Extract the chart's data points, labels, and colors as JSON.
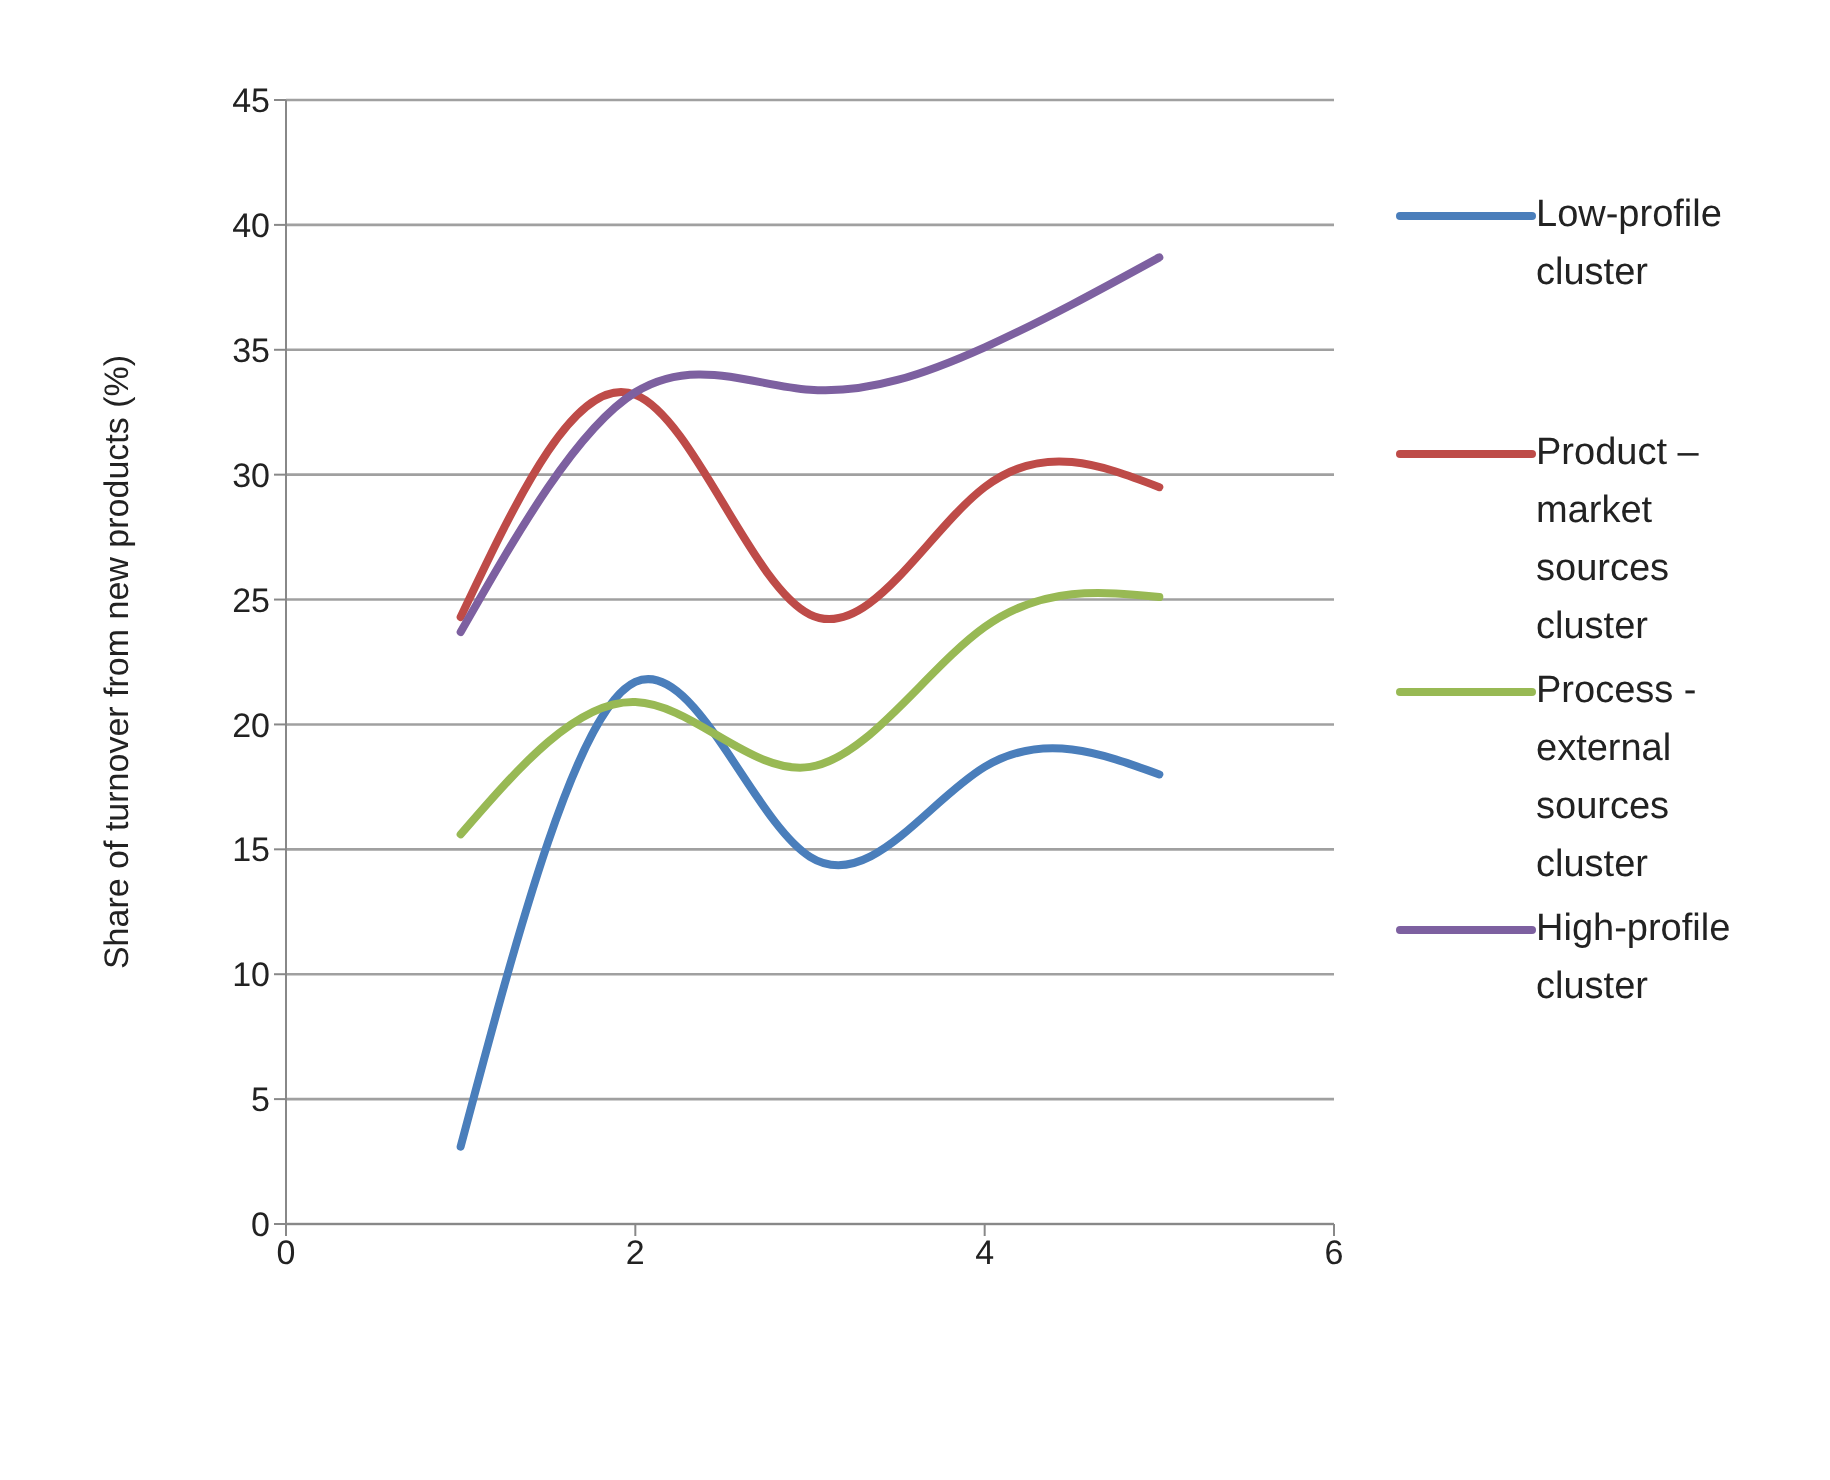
{
  "chart_data": {
    "type": "line",
    "ylabel": "Share of turnover from new products (%)",
    "x": [
      1,
      2,
      3,
      4,
      5
    ],
    "xlim": [
      0,
      6
    ],
    "xticks": [
      0,
      2,
      4,
      6
    ],
    "ylim": [
      0,
      45
    ],
    "yticks": [
      0,
      5,
      10,
      15,
      20,
      25,
      30,
      35,
      40,
      45
    ],
    "grid": "y",
    "legend": "right",
    "marker": "none",
    "series": [
      {
        "name": "Low-profile cluster",
        "color": "#4a7ebb",
        "values": [
          3.1,
          21.7,
          14.7,
          18.3,
          18.0
        ]
      },
      {
        "name": "Product – market sources cluster",
        "color": "#be4b48",
        "values": [
          24.3,
          33.2,
          24.4,
          29.5,
          29.5
        ]
      },
      {
        "name": "Process - external sources cluster",
        "color": "#98b954",
        "values": [
          15.6,
          20.9,
          18.3,
          23.9,
          25.1
        ]
      },
      {
        "name": "High-profile cluster",
        "color": "#7d60a0",
        "values": [
          23.7,
          33.3,
          33.4,
          35.1,
          38.7
        ]
      }
    ]
  }
}
